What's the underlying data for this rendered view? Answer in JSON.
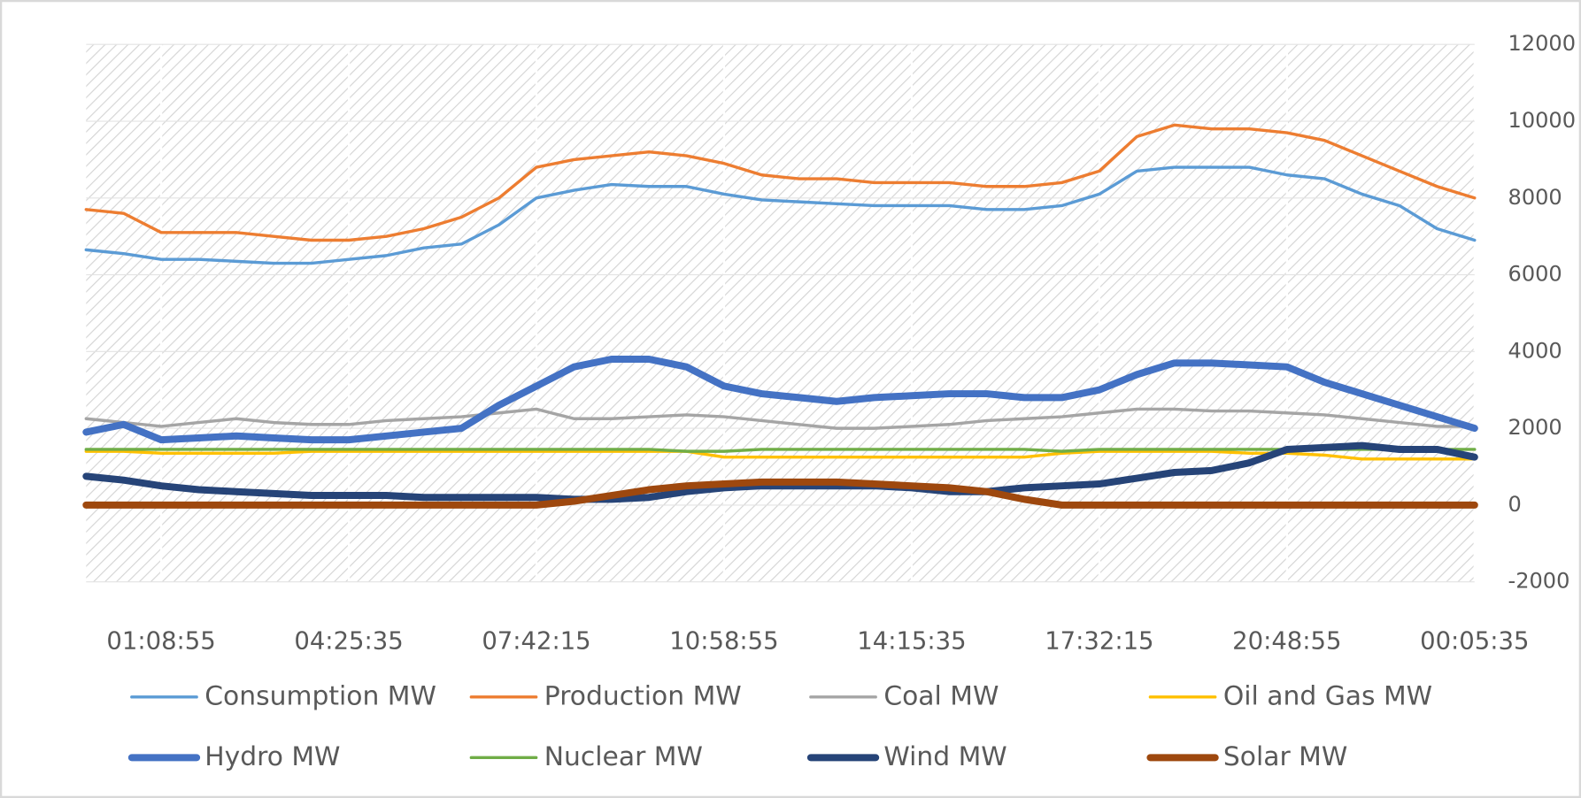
{
  "chart_data": {
    "type": "line",
    "categories": [
      null,
      null,
      "01:08:55",
      null,
      null,
      null,
      null,
      "04:25:35",
      null,
      null,
      null,
      null,
      "07:42:15",
      null,
      null,
      null,
      null,
      "10:58:55",
      null,
      null,
      null,
      null,
      "14:15:35",
      null,
      null,
      null,
      null,
      "17:32:15",
      null,
      null,
      null,
      null,
      "20:48:55",
      null,
      null,
      null,
      null,
      "00:05:35"
    ],
    "ylim": [
      -2000,
      12000
    ],
    "yticks": [
      -2000,
      0,
      2000,
      4000,
      6000,
      8000,
      10000,
      12000
    ],
    "grid": true,
    "legend": "bottom",
    "series": [
      {
        "name": "Consumption MW",
        "color": "#5b9bd5",
        "width": "thin",
        "values": [
          6650,
          6550,
          6400,
          6400,
          6350,
          6300,
          6300,
          6400,
          6500,
          6700,
          6800,
          7300,
          8000,
          8200,
          8350,
          8300,
          8300,
          8100,
          7950,
          7900,
          7850,
          7800,
          7800,
          7800,
          7700,
          7700,
          7800,
          8100,
          8700,
          8800,
          8800,
          8800,
          8600,
          8500,
          8100,
          7800,
          7200,
          6900
        ]
      },
      {
        "name": "Production MW",
        "color": "#ed7d31",
        "width": "thin",
        "values": [
          7700,
          7600,
          7100,
          7100,
          7100,
          7000,
          6900,
          6900,
          7000,
          7200,
          7500,
          8000,
          8800,
          9000,
          9100,
          9200,
          9100,
          8900,
          8600,
          8500,
          8500,
          8400,
          8400,
          8400,
          8300,
          8300,
          8400,
          8700,
          9600,
          9900,
          9800,
          9800,
          9700,
          9500,
          9100,
          8700,
          8300,
          8000
        ]
      },
      {
        "name": "Coal MW",
        "color": "#a5a5a5",
        "width": "thin",
        "values": [
          2250,
          2150,
          2050,
          2150,
          2250,
          2150,
          2100,
          2100,
          2200,
          2250,
          2300,
          2400,
          2500,
          2250,
          2250,
          2300,
          2350,
          2300,
          2200,
          2100,
          2000,
          2000,
          2050,
          2100,
          2200,
          2250,
          2300,
          2400,
          2500,
          2500,
          2450,
          2450,
          2400,
          2350,
          2250,
          2150,
          2050,
          2050
        ]
      },
      {
        "name": "Oil and Gas MW",
        "color": "#ffc000",
        "width": "thin",
        "values": [
          1400,
          1400,
          1350,
          1350,
          1350,
          1350,
          1400,
          1400,
          1400,
          1400,
          1400,
          1400,
          1400,
          1400,
          1400,
          1400,
          1400,
          1250,
          1250,
          1250,
          1250,
          1250,
          1250,
          1250,
          1250,
          1250,
          1350,
          1400,
          1400,
          1400,
          1400,
          1350,
          1350,
          1300,
          1200,
          1200,
          1200,
          1200
        ]
      },
      {
        "name": "Hydro MW",
        "color": "#4472c4",
        "width": "thick",
        "values": [
          1900,
          2100,
          1700,
          1750,
          1800,
          1750,
          1700,
          1700,
          1800,
          1900,
          2000,
          2600,
          3100,
          3600,
          3800,
          3800,
          3600,
          3100,
          2900,
          2800,
          2700,
          2800,
          2850,
          2900,
          2900,
          2800,
          2800,
          3000,
          3400,
          3700,
          3700,
          3650,
          3600,
          3200,
          2900,
          2600,
          2300,
          2000
        ]
      },
      {
        "name": "Nuclear MW",
        "color": "#70ad47",
        "width": "thin",
        "values": [
          1450,
          1450,
          1450,
          1450,
          1450,
          1450,
          1450,
          1450,
          1450,
          1450,
          1450,
          1450,
          1450,
          1450,
          1450,
          1450,
          1400,
          1400,
          1450,
          1450,
          1450,
          1450,
          1450,
          1450,
          1450,
          1450,
          1400,
          1450,
          1450,
          1450,
          1450,
          1450,
          1450,
          1450,
          1450,
          1450,
          1450,
          1450
        ]
      },
      {
        "name": "Wind MW",
        "color": "#264478",
        "width": "thick",
        "values": [
          750,
          650,
          500,
          400,
          350,
          300,
          250,
          250,
          250,
          200,
          200,
          200,
          200,
          150,
          150,
          200,
          350,
          450,
          500,
          500,
          500,
          500,
          450,
          350,
          350,
          450,
          500,
          550,
          700,
          850,
          900,
          1100,
          1450,
          1500,
          1550,
          1450,
          1450,
          1250
        ]
      },
      {
        "name": "Solar MW",
        "color": "#9e480e",
        "width": "thick",
        "values": [
          0,
          0,
          0,
          0,
          0,
          0,
          0,
          0,
          0,
          0,
          0,
          0,
          0,
          100,
          250,
          400,
          500,
          550,
          600,
          600,
          600,
          550,
          500,
          450,
          350,
          150,
          0,
          0,
          0,
          0,
          0,
          0,
          0,
          0,
          0,
          0,
          0,
          0
        ]
      }
    ]
  }
}
